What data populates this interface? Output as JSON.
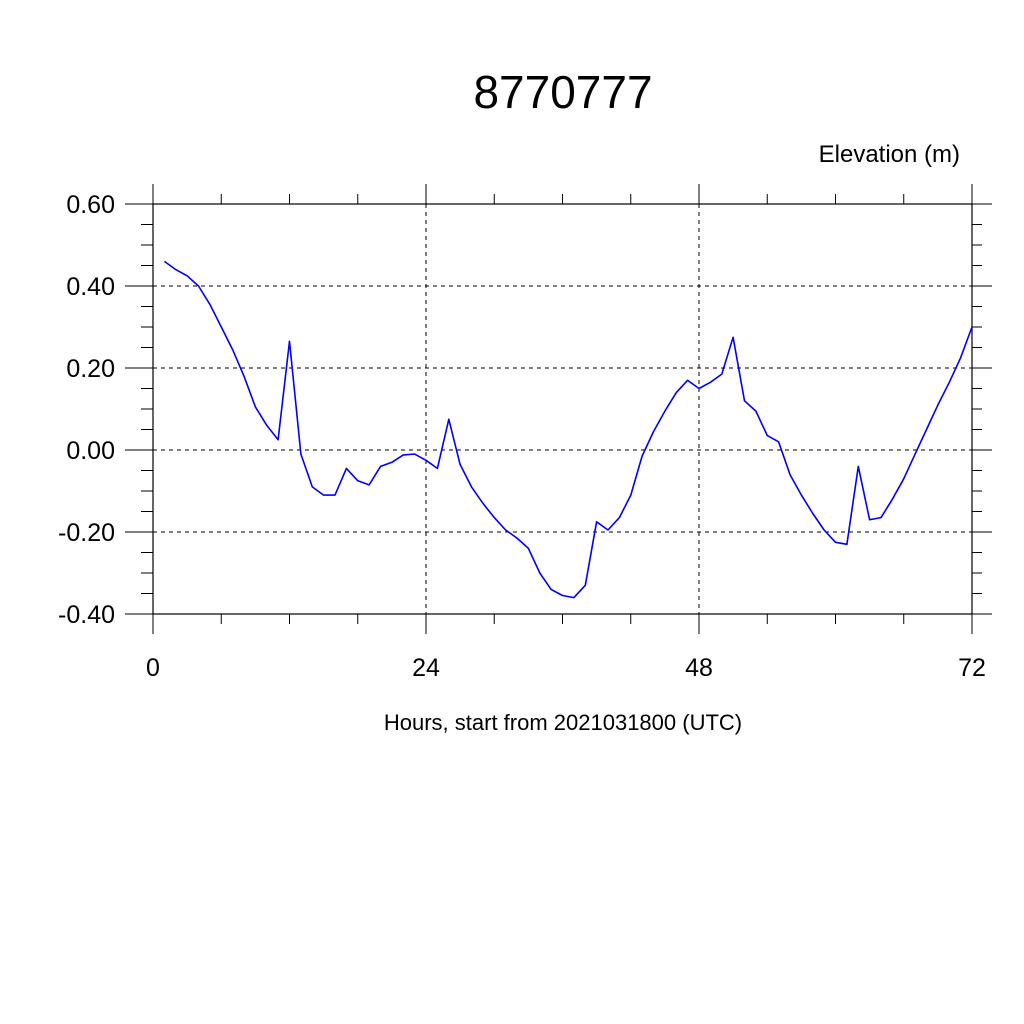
{
  "chart_data": {
    "type": "line",
    "title": "8770777",
    "ylabel": "Elevation (m)",
    "xlabel": "Hours, start from 2021031800 (UTC)",
    "xlim": [
      0,
      72
    ],
    "ylim": [
      -0.4,
      0.6
    ],
    "x_ticks": [
      0,
      24,
      48,
      72
    ],
    "x_tick_labels": [
      "0",
      "24",
      "48",
      "72"
    ],
    "y_ticks": [
      0.6,
      0.4,
      0.2,
      0.0,
      -0.2,
      -0.4
    ],
    "y_tick_labels": [
      "0.60",
      "0.40",
      "0.20",
      "0.00",
      "-0.20",
      "-0.40"
    ],
    "grid": true,
    "series": [
      {
        "color": "#0000ff",
        "x": [
          1,
          2,
          3,
          4,
          5,
          6,
          7,
          8,
          9,
          10,
          11,
          12,
          13,
          14,
          15,
          16,
          17,
          18,
          19,
          20,
          21,
          22,
          23,
          24,
          25,
          26,
          27,
          28,
          29,
          30,
          31,
          32,
          33,
          34,
          35,
          36,
          37,
          38,
          39,
          40,
          41,
          42,
          43,
          44,
          45,
          46,
          47,
          48,
          49,
          50,
          51,
          52,
          53,
          54,
          55,
          56,
          57,
          58,
          59,
          60,
          61,
          62,
          63,
          64,
          65,
          66,
          67,
          68,
          69,
          70,
          71,
          72
        ],
        "y": [
          0.46,
          0.44,
          0.425,
          0.4,
          0.355,
          0.3,
          0.245,
          0.18,
          0.105,
          0.06,
          0.025,
          0.265,
          -0.01,
          -0.09,
          -0.11,
          -0.11,
          -0.045,
          -0.075,
          -0.085,
          -0.04,
          -0.03,
          -0.012,
          -0.01,
          -0.025,
          -0.045,
          0.075,
          -0.035,
          -0.09,
          -0.13,
          -0.165,
          -0.195,
          -0.215,
          -0.24,
          -0.3,
          -0.34,
          -0.355,
          -0.36,
          -0.33,
          -0.175,
          -0.195,
          -0.165,
          -0.11,
          -0.015,
          0.045,
          0.095,
          0.14,
          0.17,
          0.15,
          0.165,
          0.185,
          0.275,
          0.12,
          0.095,
          0.035,
          0.02,
          -0.06,
          -0.11,
          -0.155,
          -0.195,
          -0.225,
          -0.23,
          -0.04,
          -0.17,
          -0.165,
          -0.12,
          -0.07,
          -0.01,
          0.05,
          0.11,
          0.165,
          0.225,
          0.3
        ]
      }
    ]
  }
}
